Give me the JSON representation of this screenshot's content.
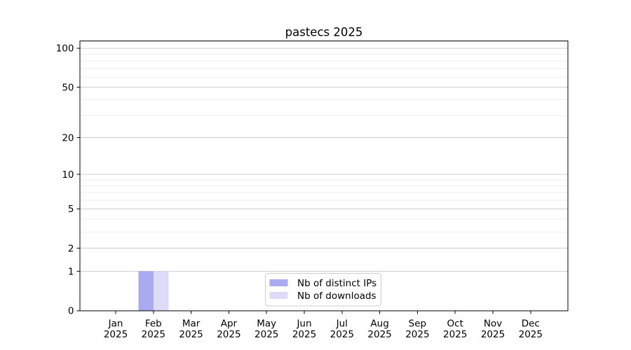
{
  "figure": {
    "background": "#ffffff"
  },
  "chart_data": {
    "type": "bar",
    "title": "pastecs 2025",
    "categories": [
      {
        "month": "Jan",
        "year": "2025"
      },
      {
        "month": "Feb",
        "year": "2025"
      },
      {
        "month": "Mar",
        "year": "2025"
      },
      {
        "month": "Apr",
        "year": "2025"
      },
      {
        "month": "May",
        "year": "2025"
      },
      {
        "month": "Jun",
        "year": "2025"
      },
      {
        "month": "Jul",
        "year": "2025"
      },
      {
        "month": "Aug",
        "year": "2025"
      },
      {
        "month": "Sep",
        "year": "2025"
      },
      {
        "month": "Oct",
        "year": "2025"
      },
      {
        "month": "Nov",
        "year": "2025"
      },
      {
        "month": "Dec",
        "year": "2025"
      }
    ],
    "series": [
      {
        "name": "Nb of distinct IPs",
        "color": "#aaaaf0",
        "values": [
          0,
          1,
          0,
          0,
          0,
          0,
          0,
          0,
          0,
          0,
          0,
          0
        ]
      },
      {
        "name": "Nb of downloads",
        "color": "#dcdcf8",
        "values": [
          0,
          1,
          0,
          0,
          0,
          0,
          0,
          0,
          0,
          0,
          0,
          0
        ]
      }
    ],
    "y_axis": {
      "scale": "log1p",
      "major_ticks": [
        0,
        1,
        2,
        5,
        10,
        20,
        50,
        100
      ],
      "minor_ticks": [
        3,
        4,
        6,
        7,
        8,
        9,
        30,
        40,
        60,
        70,
        80,
        90
      ],
      "min": 0,
      "max": 114
    },
    "grid": {
      "major_color": "#cccccc",
      "minor_color": "#ededed"
    },
    "legend": {
      "position": "lower center",
      "border_color": "#cccccc",
      "background": "#ffffff"
    },
    "spine_color": "#000000",
    "text_color": "#000000"
  }
}
